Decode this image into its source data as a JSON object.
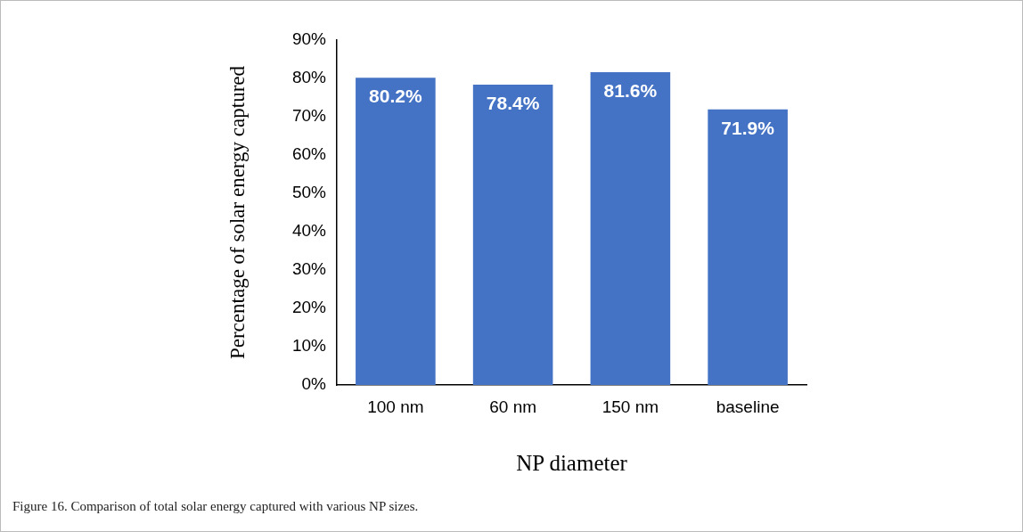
{
  "chart_data": {
    "type": "bar",
    "categories": [
      "100 nm",
      "60 nm",
      "150 nm",
      "baseline"
    ],
    "values": [
      80.2,
      78.4,
      81.6,
      71.9
    ],
    "value_labels": [
      "80.2%",
      "78.4%",
      "81.6%",
      "71.9%"
    ],
    "color": "#4472c4",
    "xlabel": "NP diameter",
    "ylabel": "Percentage of solar energy captured",
    "ylim": [
      0,
      90
    ],
    "yticks": [
      {
        "value": 0,
        "label": "0%"
      },
      {
        "value": 10,
        "label": "10%"
      },
      {
        "value": 20,
        "label": "20%"
      },
      {
        "value": 30,
        "label": "30%"
      },
      {
        "value": 40,
        "label": "40%"
      },
      {
        "value": 50,
        "label": "50%"
      },
      {
        "value": 60,
        "label": "60%"
      },
      {
        "value": 70,
        "label": "70%"
      },
      {
        "value": 80,
        "label": "80%"
      },
      {
        "value": 90,
        "label": "90%"
      }
    ],
    "grid": false,
    "legend": false,
    "annotations": [
      "Figure 16. Comparison of total solar energy captured with various NP sizes."
    ]
  }
}
